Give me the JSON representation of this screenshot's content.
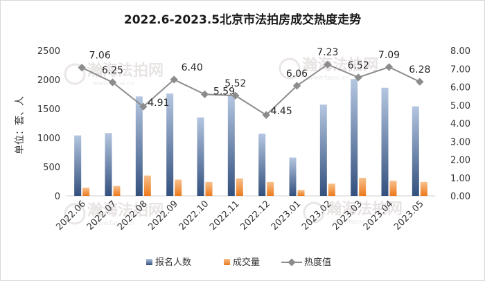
{
  "chart_data": {
    "type": "bar+line",
    "title": "2022.6-2023.5北京市法拍房成交热度走势",
    "ylabel": "单位：套、人",
    "categories": [
      "2022.06",
      "2022.07",
      "2022.08",
      "2022.09",
      "2022.10",
      "2022.11",
      "2022.12",
      "2023.01",
      "2023.02",
      "2023.03",
      "2023.04",
      "2023.05"
    ],
    "series": [
      {
        "name": "报名人数",
        "type": "bar",
        "axis": "left",
        "color": "#4a6a9a",
        "values": [
          1040,
          1080,
          1710,
          1760,
          1350,
          1720,
          1070,
          660,
          1570,
          2010,
          1860,
          1540
        ]
      },
      {
        "name": "成交量",
        "type": "bar",
        "axis": "left",
        "color": "#f28e2b",
        "values": [
          140,
          170,
          350,
          280,
          240,
          300,
          240,
          100,
          210,
          310,
          260,
          240
        ]
      },
      {
        "name": "热度值",
        "type": "line",
        "axis": "right",
        "color": "#8c8c8c",
        "values": [
          7.06,
          6.25,
          4.91,
          6.4,
          5.59,
          5.52,
          4.45,
          6.06,
          7.23,
          6.52,
          7.09,
          6.28
        ]
      }
    ],
    "left_axis": {
      "ylim": [
        0,
        2500
      ],
      "ticks": [
        "0",
        "500",
        "1000",
        "1500",
        "2000",
        "2500"
      ]
    },
    "right_axis": {
      "ylim": [
        0,
        8
      ],
      "ticks": [
        "0.00",
        "1.00",
        "2.00",
        "3.00",
        "4.00",
        "5.00",
        "6.00",
        "7.00",
        "8.00"
      ]
    },
    "data_labels": [
      "7.06",
      "6.25",
      "4.91",
      "6.40",
      "5.59",
      "5.52",
      "4.45",
      "6.06",
      "7.23",
      "6.52",
      "7.09",
      "6.28"
    ],
    "grid": false,
    "legend": {
      "position": "bottom",
      "entries": [
        "报名人数",
        "成交量",
        "热度值"
      ]
    }
  },
  "watermark": {
    "text": "瀚海法拍网",
    "url": "www.fapai.cn"
  }
}
